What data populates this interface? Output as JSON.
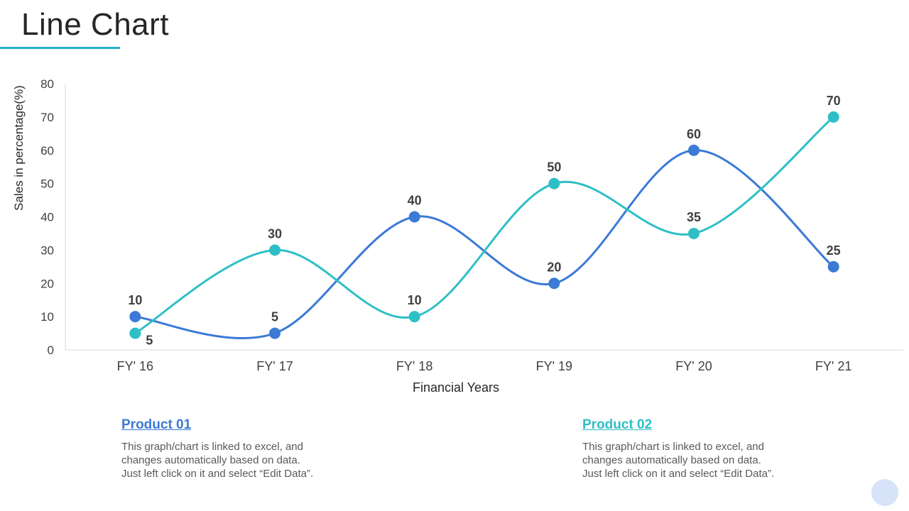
{
  "slide": {
    "title": "Line Chart",
    "accent_color": "#20b2c8"
  },
  "chart_data": {
    "type": "line",
    "title": "",
    "xlabel": "Financial Years",
    "ylabel": "Sales in percentage(%)",
    "categories": [
      "FY' 16",
      "FY' 17",
      "FY' 18",
      "FY' 19",
      "FY' 20",
      "FY' 21"
    ],
    "ylim": [
      0,
      80
    ],
    "yticks": [
      0,
      10,
      20,
      30,
      40,
      50,
      60,
      70,
      80
    ],
    "grid": false,
    "smooth": true,
    "series": [
      {
        "name": "Product 01",
        "values": [
          10,
          5,
          40,
          20,
          60,
          25
        ],
        "color": "#3b7ad6"
      },
      {
        "name": "Product 02",
        "values": [
          5,
          30,
          10,
          50,
          35,
          70
        ],
        "color": "#2ebfc6"
      }
    ]
  },
  "legend": [
    {
      "name": "Product 01",
      "color": "#3b7ad6",
      "description": "This graph/chart is linked to excel, and\nchanges automatically based on data.\nJust left click on it and select “Edit Data”."
    },
    {
      "name": "Product 02",
      "color": "#2ebfc6",
      "description": "This graph/chart is linked to excel, and\nchanges automatically based on data.\nJust left click on it and select “Edit Data”."
    }
  ]
}
